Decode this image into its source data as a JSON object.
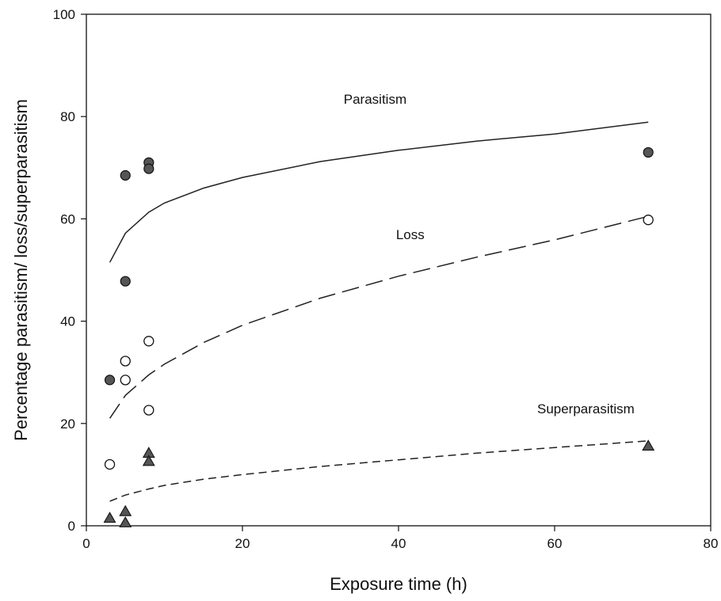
{
  "chart_data": {
    "type": "scatter",
    "xlabel": "Exposure time (h)",
    "ylabel": "Percentage parasitism/ loss/superparasitism",
    "xlim": [
      0,
      80
    ],
    "ylim": [
      0,
      100
    ],
    "xticks": [
      0,
      20,
      40,
      60,
      80
    ],
    "yticks": [
      0,
      20,
      40,
      60,
      80,
      100
    ],
    "grid": false,
    "series": [
      {
        "name": "Parasitism",
        "marker": "filled-circle",
        "line_style": "solid",
        "color": "#222222",
        "points": [
          [
            3,
            28.5
          ],
          [
            5,
            68.5
          ],
          [
            5,
            47.8
          ],
          [
            8,
            71
          ],
          [
            8,
            69.8
          ],
          [
            72,
            73
          ]
        ],
        "curve": [
          [
            3,
            51.5
          ],
          [
            5,
            57.2
          ],
          [
            8,
            61.3
          ],
          [
            10,
            63.1
          ],
          [
            15,
            66.0
          ],
          [
            20,
            68.1
          ],
          [
            30,
            71.2
          ],
          [
            40,
            73.4
          ],
          [
            50,
            75.2
          ],
          [
            60,
            76.6
          ],
          [
            72,
            78.9
          ]
        ]
      },
      {
        "name": "Loss",
        "marker": "open-circle",
        "line_style": "long-dash",
        "color": "#222222",
        "points": [
          [
            3,
            12
          ],
          [
            5,
            32.2
          ],
          [
            5,
            28.5
          ],
          [
            8,
            36.1
          ],
          [
            8,
            22.6
          ],
          [
            72,
            59.8
          ]
        ],
        "curve": [
          [
            3,
            21
          ],
          [
            5,
            25.5
          ],
          [
            8,
            29.5
          ],
          [
            10,
            31.6
          ],
          [
            15,
            35.8
          ],
          [
            20,
            39.2
          ],
          [
            30,
            44.5
          ],
          [
            40,
            48.8
          ],
          [
            50,
            52.5
          ],
          [
            60,
            55.9
          ],
          [
            72,
            60.5
          ]
        ]
      },
      {
        "name": "Superparasitism",
        "marker": "filled-triangle",
        "line_style": "short-dash",
        "color": "#222222",
        "points": [
          [
            3,
            1.5
          ],
          [
            5,
            2.8
          ],
          [
            5,
            0.6
          ],
          [
            8,
            14.2
          ],
          [
            8,
            12.6
          ],
          [
            72,
            15.6
          ]
        ],
        "curve": [
          [
            3,
            4.8
          ],
          [
            5,
            6.0
          ],
          [
            8,
            7.2
          ],
          [
            10,
            7.9
          ],
          [
            15,
            9.1
          ],
          [
            20,
            10.0
          ],
          [
            30,
            11.6
          ],
          [
            40,
            12.9
          ],
          [
            50,
            14.2
          ],
          [
            60,
            15.3
          ],
          [
            72,
            16.6
          ]
        ]
      }
    ],
    "annotations": [
      {
        "text": "Parasitism",
        "x": 37,
        "y": 82.5
      },
      {
        "text": "Loss",
        "x": 41.5,
        "y": 56
      },
      {
        "text": "Superparasitism",
        "x": 64,
        "y": 22
      }
    ]
  }
}
